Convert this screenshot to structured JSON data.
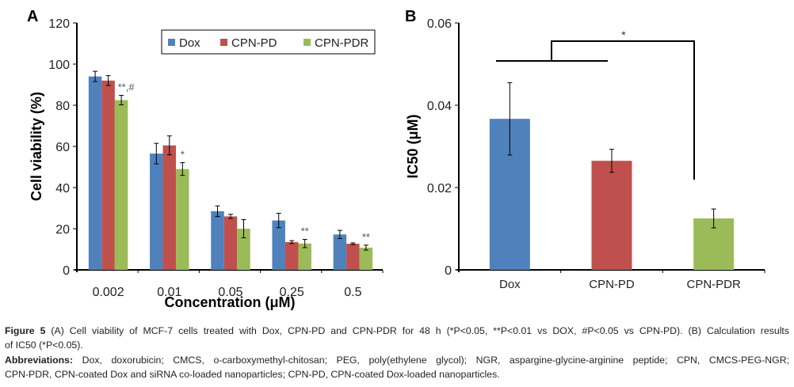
{
  "chart_data": [
    {
      "type": "bar",
      "panel_label": "A",
      "categories": [
        "0.002",
        "0.01",
        "0.05",
        "0.25",
        "0.5"
      ],
      "xlabel": "Concentration (μM)",
      "ylabel": "Cell viability (%)",
      "ylim": [
        0,
        120
      ],
      "yticks": [
        "0",
        "20",
        "40",
        "60",
        "80",
        "100",
        "120"
      ],
      "legend_position": "top-right",
      "grid": false,
      "series": [
        {
          "name": "Dox",
          "color": "#4f81bd",
          "values": [
            94,
            56.5,
            28.5,
            24,
            17.2
          ],
          "errors": [
            2.5,
            5,
            2.6,
            3.5,
            2
          ]
        },
        {
          "name": "CPN-PD",
          "color": "#c0504d",
          "values": [
            92,
            60.5,
            26,
            13.5,
            12.7
          ],
          "errors": [
            2.4,
            4.6,
            1,
            0.7,
            0.4
          ]
        },
        {
          "name": "CPN-PDR",
          "color": "#9bbb59",
          "values": [
            82.5,
            49,
            20,
            12.8,
            10.8
          ],
          "errors": [
            2.3,
            3.1,
            4.4,
            2,
            1.2
          ]
        }
      ],
      "annotations": [
        {
          "category": "0.002",
          "text": "**,#"
        },
        {
          "category": "0.01",
          "text": "*"
        },
        {
          "category": "0.25",
          "text": "**"
        },
        {
          "category": "0.5",
          "text": "**"
        }
      ]
    },
    {
      "type": "bar",
      "panel_label": "B",
      "categories": [
        "Dox",
        "CPN-PD",
        "CPN-PDR"
      ],
      "ylabel": "IC50 (μM)",
      "ylim": [
        0,
        0.06
      ],
      "yticks": [
        "0",
        "0.02",
        "0.04",
        "0.06"
      ],
      "grid": false,
      "colors": [
        "#4f81bd",
        "#c0504d",
        "#9bbb59"
      ],
      "values": [
        0.0367,
        0.0265,
        0.0125
      ],
      "errors": [
        0.0088,
        0.0028,
        0.0023
      ],
      "significance": {
        "text": "*",
        "between": "Dox & CPN-PD vs CPN-PDR"
      }
    }
  ],
  "caption": {
    "fig": "Figure 5",
    "line1": " (A) Cell viability of MCF-7 cells treated with Dox, CPN-PD and CPN-PDR for 48 h (*P<0.05, **P<0.01 vs DOX, #P<0.05 vs CPN-PD). (B) Calculation results",
    "line2": "of IC50 (*P<0.05).",
    "abbr_label": "Abbreviations:",
    "line3": " Dox, doxorubicin; CMCS, o-carboxymethyl-chitosan; PEG, poly(ethylene glycol); NGR, aspargine-glycine-arginine peptide; CPN, CMCS-PEG-NGR;",
    "line4": "CPN-PDR, CPN-coated Dox and siRNA co-loaded nanoparticles; CPN-PD, CPN-coated Dox-loaded nanoparticles."
  }
}
